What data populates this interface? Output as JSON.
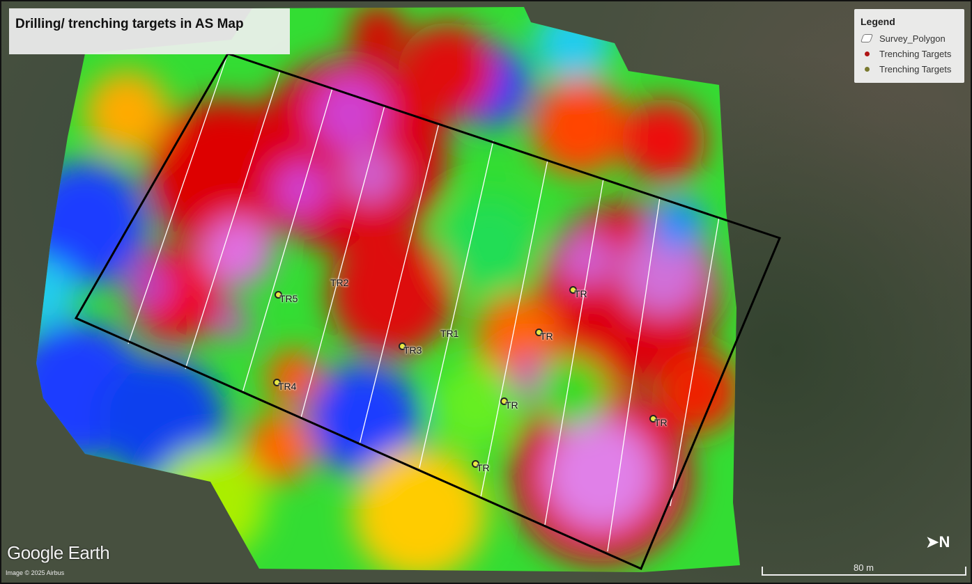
{
  "title": "Drilling/ trenching targets in AS Map",
  "legend": {
    "title": "Legend",
    "items": [
      {
        "label": "Survey_Polygon",
        "icon": "polygon-icon",
        "color": "#ffffff"
      },
      {
        "label": "Trenching Targets",
        "icon": "dot-icon",
        "color": "#b01515"
      },
      {
        "label": "Trenching Targets",
        "icon": "dot-icon",
        "color": "#7a7a30"
      }
    ]
  },
  "targets": [
    "TR5",
    "TR2",
    "TR1",
    "TR3",
    "TR4",
    "TR",
    "TR",
    "TR",
    "TR",
    "TR"
  ],
  "branding": "Google Earth",
  "attribution": "Image © 2025 Airbus",
  "scale_label": "80 m",
  "north_label": "N",
  "colors": {
    "polygon_outline": "#000000",
    "survey_lines": "#ffffff"
  }
}
